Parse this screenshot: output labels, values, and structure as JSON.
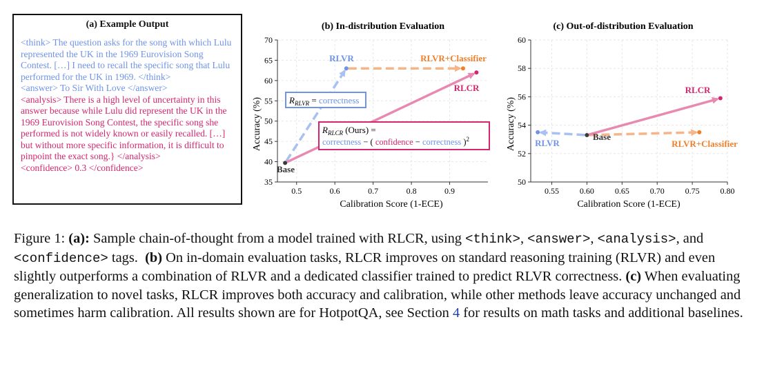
{
  "panel_a": {
    "title": "(a) Example Output",
    "think": "<think> The question asks for the song with which Lulu represented the UK in the 1969 Eurovision Song Contest. […] I need to recall the specific song that Lulu performed for the UK in 1969. </think>",
    "answer": "<answer> To Sir With Love </answer>",
    "analysis": "<analysis> There is a high level of uncertainty in this answer because while Lulu did represent the UK in the 1969 Eurovision Song Contest, the specific song she performed is not widely known or easily recalled. […] but without more specific information, it is difficult to pinpoint the exact song.} </analysis>",
    "confidence": "<confidence> 0.3 </confidence>"
  },
  "colors": {
    "blue": "#6f93e8",
    "pink": "#d4266e",
    "orange": "#f07f2a",
    "grey": "#444444"
  },
  "chart_data": [
    {
      "type": "scatter",
      "title": "(b) In-distribution Evaluation",
      "xlabel": "Calibration Score (1-ECE)",
      "ylabel": "Accuracy (%)",
      "xlim": [
        0.45,
        1.0
      ],
      "ylim": [
        35,
        70
      ],
      "xticks": [
        "0.5",
        "0.6",
        "0.7",
        "0.8",
        "0.9"
      ],
      "yticks": [
        "35",
        "40",
        "45",
        "50",
        "55",
        "60",
        "65",
        "70"
      ],
      "grid": true,
      "points": [
        {
          "name": "Base",
          "x": 0.47,
          "y": 39.7
        },
        {
          "name": "RLVR",
          "x": 0.63,
          "y": 63
        },
        {
          "name": "RLVR+Classifier",
          "x": 0.935,
          "y": 63
        },
        {
          "name": "RLCR",
          "x": 0.97,
          "y": 62
        }
      ],
      "arrows": [
        {
          "from": "Base",
          "to": "RLVR",
          "style": "dashed",
          "color": "blue"
        },
        {
          "from": "RLVR",
          "to": "RLVR+Classifier",
          "style": "dashed",
          "color": "orange"
        },
        {
          "from": "Base",
          "to": "RLCR",
          "style": "solid",
          "color": "pink"
        }
      ],
      "annotations": {
        "rlvr_r": "R",
        "rlvr_sub": "RLVR",
        "rlvr_eq": " = ",
        "rlvr_term": "correctness",
        "rlcr_r": "R",
        "rlcr_sub": "RLCR",
        "rlcr_ours": " (Ours) =",
        "rlcr_c1": "correctness",
        "rlcr_m1": " − ( ",
        "rlcr_conf": "confidence",
        "rlcr_m2": " − ",
        "rlcr_c2": "correctness",
        "rlcr_close": " )",
        "rlcr_sq": "2"
      }
    },
    {
      "type": "scatter",
      "title": "(c) Out-of-distribution Evaluation",
      "xlabel": "Calibration Score (1-ECE)",
      "ylabel": "Accuracy (%)",
      "xlim": [
        0.52,
        0.8
      ],
      "ylim": [
        50,
        60
      ],
      "xticks": [
        "0.55",
        "0.60",
        "0.65",
        "0.70",
        "0.75",
        "0.80"
      ],
      "yticks": [
        "50",
        "52",
        "54",
        "56",
        "58",
        "60"
      ],
      "grid": true,
      "points": [
        {
          "name": "Base",
          "x": 0.6,
          "y": 53.3
        },
        {
          "name": "RLVR",
          "x": 0.53,
          "y": 53.5
        },
        {
          "name": "RLVR+Classifier",
          "x": 0.76,
          "y": 53.5
        },
        {
          "name": "RLCR",
          "x": 0.79,
          "y": 55.9
        }
      ],
      "arrows": [
        {
          "from": "Base",
          "to": "RLVR",
          "style": "dashed",
          "color": "blue"
        },
        {
          "from": "Base",
          "to": "RLVR+Classifier",
          "style": "dashed",
          "color": "orange"
        },
        {
          "from": "Base",
          "to": "RLCR",
          "style": "solid",
          "color": "pink"
        }
      ]
    }
  ],
  "caption": {
    "fig": "Figure 1: ",
    "a_lbl": "(a):",
    "t1": " Sample chain-of-thought from a model trained with RLCR, using ",
    "tag_think": "<think>",
    "sep1": ", ",
    "tag_answer": "<answer>",
    "sep2": ", ",
    "tag_analysis": "<analysis>",
    "t2": ", and ",
    "tag_conf": "<confidence>",
    "t3": " tags.  ",
    "b_lbl": "(b)",
    "t4": " On in-domain evaluation tasks, RLCR improves on standard reasoning training (RLVR) and even slightly outperforms a combination of RLVR and a dedicated classifier trained to predict RLVR correctness. ",
    "c_lbl": "(c)",
    "t5": " When evaluating generalization to novel tasks, RLCR improves both accuracy and calibration, while other methods leave accuracy unchanged and sometimes harm calibration. All results shown are for HotpotQA, see Section ",
    "sec": "4",
    "t6": " for results on math tasks and additional baselines."
  }
}
